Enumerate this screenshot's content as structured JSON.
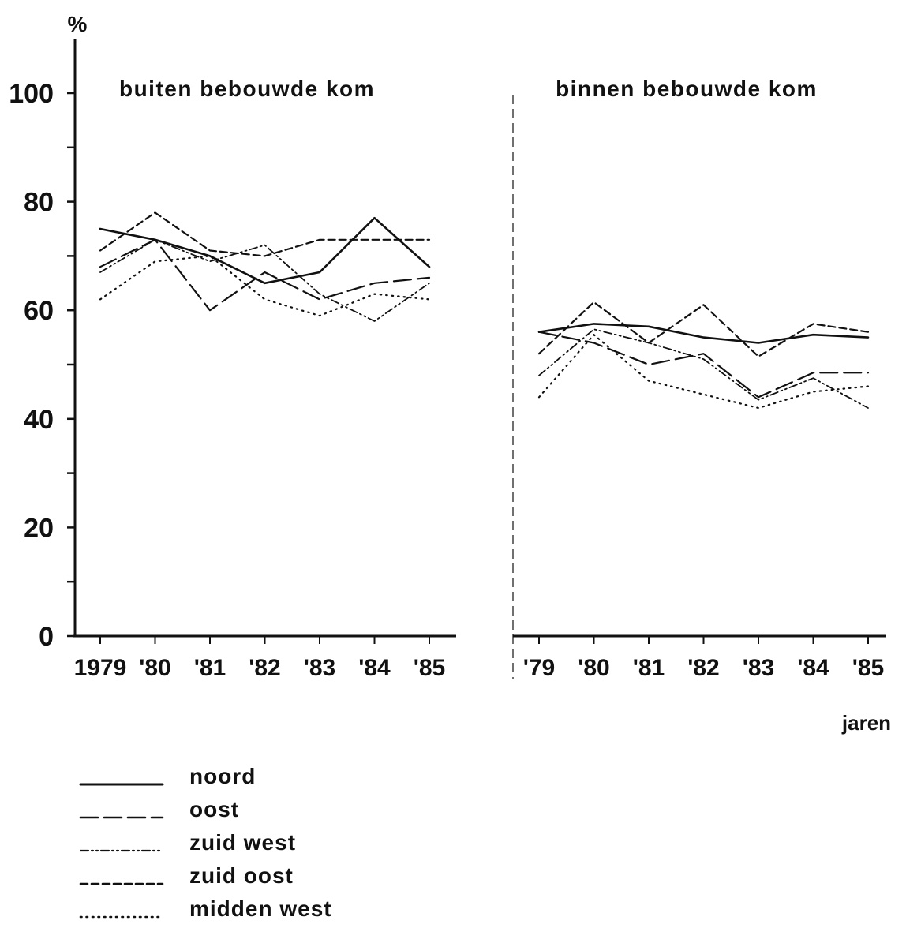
{
  "chart_data": {
    "type": "line",
    "ylabel": "%",
    "xlabel": "jaren",
    "ylim": [
      0,
      110
    ],
    "yticks": [
      0,
      20,
      40,
      60,
      80,
      100
    ],
    "grid": false,
    "legend_position": "bottom-left",
    "legend": [
      "noord",
      "oost",
      "zuid west",
      "zuid oost",
      "midden west"
    ],
    "panels": [
      {
        "title": "buiten bebouwde kom",
        "categories": [
          "1979",
          "'80",
          "'81",
          "'82",
          "'83",
          "'84",
          "'85"
        ],
        "series": [
          {
            "name": "noord",
            "values": [
              75,
              73,
              70,
              65,
              67,
              77,
              68
            ]
          },
          {
            "name": "oost",
            "values": [
              68,
              73,
              60,
              67,
              62,
              65,
              66
            ]
          },
          {
            "name": "zuid west",
            "values": [
              67,
              73,
              69,
              72,
              63,
              58,
              65
            ]
          },
          {
            "name": "zuid oost",
            "values": [
              71,
              78,
              71,
              70,
              73,
              73,
              73
            ]
          },
          {
            "name": "midden west",
            "values": [
              62,
              69,
              70,
              62,
              59,
              63,
              62
            ]
          }
        ]
      },
      {
        "title": "binnen bebouwde kom",
        "categories": [
          "'79",
          "'80",
          "'81",
          "'82",
          "'83",
          "'84",
          "'85"
        ],
        "series": [
          {
            "name": "noord",
            "values": [
              56,
              57.5,
              57,
              55,
              54,
              55.5,
              55
            ]
          },
          {
            "name": "oost",
            "values": [
              56,
              54,
              50,
              52,
              44,
              48.5,
              48.5
            ]
          },
          {
            "name": "zuid west",
            "values": [
              48,
              56.5,
              54,
              51,
              43.5,
              47.5,
              42
            ]
          },
          {
            "name": "zuid oost",
            "values": [
              52,
              61.5,
              54,
              61,
              51.5,
              57.5,
              56
            ]
          },
          {
            "name": "midden west",
            "values": [
              44,
              55.5,
              47,
              44.5,
              42,
              45,
              46
            ]
          }
        ]
      }
    ]
  }
}
